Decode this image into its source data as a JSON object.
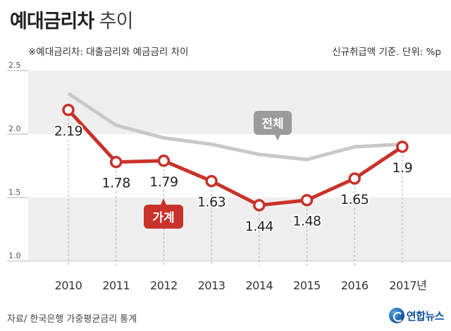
{
  "header": {
    "title_bold": "예대금리차",
    "title_light": "추이",
    "note": "※예대금리차: 대출금리와 예금금리 차이",
    "basis": "신규취급액 기준. 단위: %p"
  },
  "footer": {
    "source": "자료/ 한국은행 가중평균금리 통계",
    "logo_text": "연합뉴스"
  },
  "colors": {
    "household": "#c8322a",
    "total": "#c8c8c8",
    "total_label_bg": "#9b9b9b",
    "band": "#efefef"
  },
  "chart_data": {
    "type": "line",
    "x": [
      "2010",
      "2011",
      "2012",
      "2013",
      "2014",
      "2015",
      "2016",
      "2017년"
    ],
    "ylim": [
      1.0,
      2.5
    ],
    "yticks": [
      "2.5",
      "2.0",
      "1.5",
      "1.0"
    ],
    "series": [
      {
        "name": "가계",
        "values": [
          2.19,
          1.78,
          1.79,
          1.63,
          1.44,
          1.48,
          1.65,
          1.9
        ],
        "labels": [
          "2.19",
          "1.78",
          "1.79",
          "1.63",
          "1.44",
          "1.48",
          "1.65",
          "1.9"
        ]
      },
      {
        "name": "전체",
        "values": [
          2.32,
          2.07,
          1.97,
          1.92,
          1.84,
          1.8,
          1.9,
          1.92
        ]
      }
    ]
  }
}
